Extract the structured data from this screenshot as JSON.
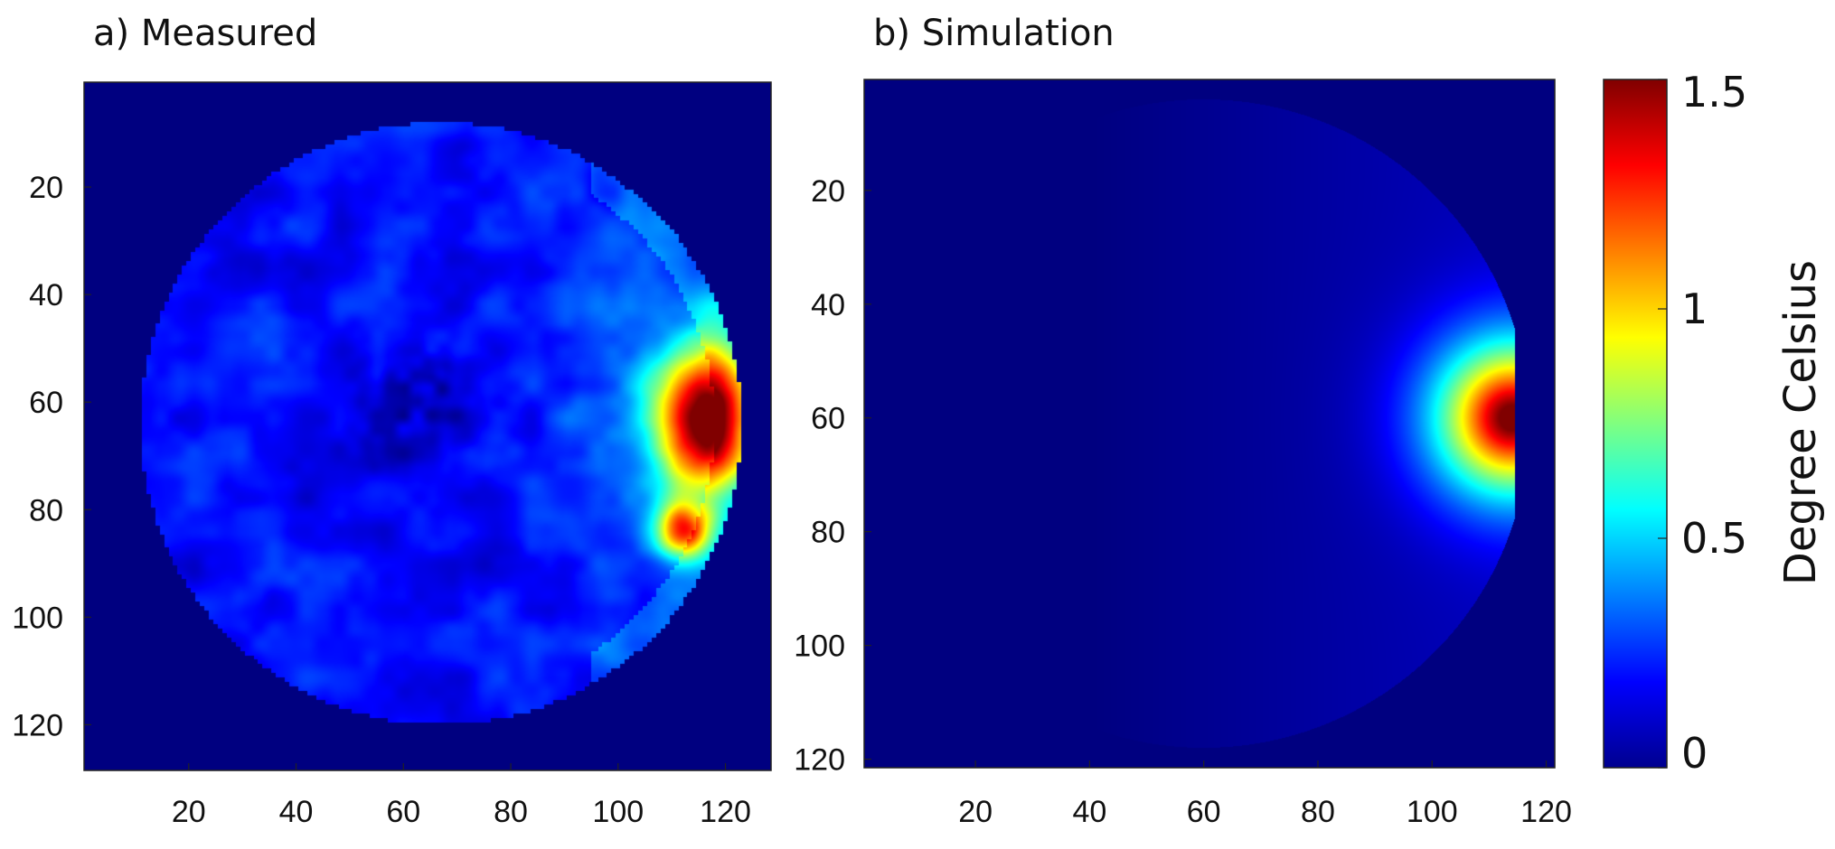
{
  "chart_data": [
    {
      "type": "heatmap",
      "title": "a) Measured",
      "xlabel": "",
      "ylabel": "",
      "xlim": [
        0.5,
        128.5
      ],
      "ylim": [
        0.5,
        128.5
      ],
      "y_reversed": true,
      "xticks": [
        20,
        40,
        60,
        80,
        100,
        120
      ],
      "yticks": [
        20,
        40,
        60,
        80,
        100,
        120
      ],
      "grid": false,
      "field": {
        "description_of_values": "temperature rise in a circular region, hot spot near right edge",
        "circle_center": [
          67,
          64
        ],
        "circle_radius": 56,
        "background_value": 0,
        "inside_baseline": 0.2,
        "hot_spot_center": [
          116,
          63
        ],
        "hot_spot_peak": 1.5
      }
    },
    {
      "type": "heatmap",
      "title": "b) Simulation",
      "xlabel": "",
      "ylabel": "",
      "xlim": [
        0.5,
        121.5
      ],
      "ylim": [
        0.5,
        121.5
      ],
      "y_reversed": true,
      "xticks": [
        20,
        40,
        60,
        80,
        100,
        120
      ],
      "yticks": [
        20,
        40,
        60,
        80,
        100,
        120
      ],
      "grid": false,
      "field": {
        "description_of_values": "simulated temperature rise, hot spot at right edge of circular region",
        "circle_center": [
          60,
          61
        ],
        "circle_radius": 57,
        "background_value": 0,
        "hot_spot_center": [
          114,
          60
        ],
        "hot_spot_peak": 1.5
      }
    }
  ],
  "colorbar": {
    "label": "Degree Celsius",
    "min": 0,
    "max": 1.5,
    "ticks": [
      {
        "value": 0,
        "label": "0"
      },
      {
        "value": 0.5,
        "label": "0.5"
      },
      {
        "value": 1,
        "label": "1"
      },
      {
        "value": 1.5,
        "label": "1.5"
      }
    ],
    "colormap": "jet"
  }
}
